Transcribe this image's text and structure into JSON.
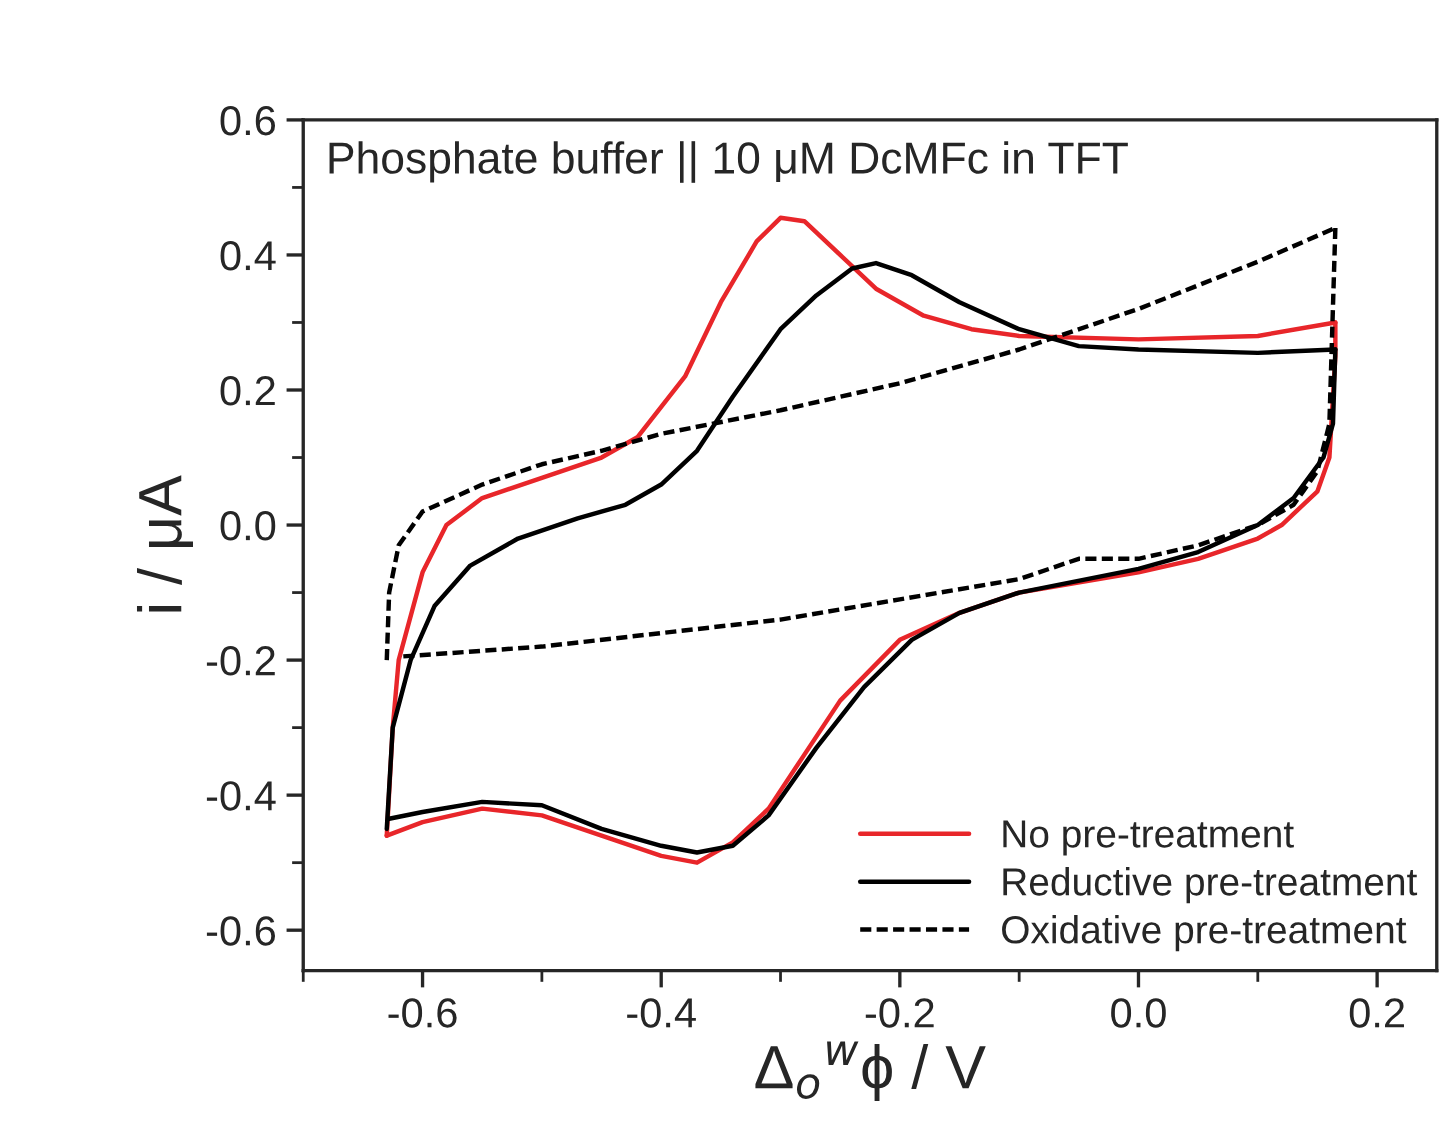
{
  "chart_data": {
    "type": "line",
    "title": "Phosphate buffer || 10 μM DcMFc in TFT",
    "xlabel": "Δ$_{o}$$^{w}$ϕ / V",
    "ylabel": "i / μA",
    "xlim": [
      -0.7,
      0.25
    ],
    "xticks": [
      -0.6,
      -0.4,
      -0.2,
      {
        "value": 0,
        "label": "0.0"
      },
      0.2
    ],
    "ylim": [
      -0.66,
      0.6
    ],
    "yticks": [
      -0.6,
      -0.4,
      -0.2,
      {
        "value": 0,
        "label": "0.0"
      },
      0.2,
      0.4,
      0.6
    ],
    "grid": false,
    "legend": "bottom right",
    "marker": "none",
    "series": [
      {
        "name": "No pre-treatment",
        "color": "#e8262a",
        "line_style": "solid",
        "x": [
          -0.63,
          -0.625,
          -0.62,
          -0.6,
          -0.58,
          -0.55,
          -0.5,
          -0.45,
          -0.42,
          -0.38,
          -0.35,
          -0.32,
          -0.3,
          -0.28,
          -0.25,
          -0.22,
          -0.18,
          -0.14,
          -0.1,
          0.0,
          0.1,
          0.165
        ],
        "values": [
          -0.46,
          -0.3,
          -0.2,
          -0.07,
          0.0,
          0.04,
          0.07,
          0.1,
          0.13,
          0.22,
          0.33,
          0.42,
          0.455,
          0.45,
          0.4,
          0.35,
          0.31,
          0.29,
          0.28,
          0.275,
          0.28,
          0.3
        ]
      },
      {
        "color": "#e8262a",
        "line_style": "solid",
        "x": [
          0.165,
          0.165,
          0.16,
          0.15,
          0.12,
          0.1,
          0.05,
          0.0,
          -0.1,
          -0.15,
          -0.2,
          -0.25,
          -0.28,
          -0.31,
          -0.34,
          -0.37,
          -0.4,
          -0.45,
          -0.5,
          -0.55,
          -0.6,
          -0.63
        ],
        "values": [
          0.3,
          0.25,
          0.1,
          0.05,
          0.0,
          -0.02,
          -0.05,
          -0.07,
          -0.1,
          -0.13,
          -0.17,
          -0.26,
          -0.34,
          -0.42,
          -0.47,
          -0.5,
          -0.49,
          -0.46,
          -0.43,
          -0.42,
          -0.44,
          -0.46
        ]
      },
      {
        "name": "Reductive pre-treatment",
        "color": "#000000",
        "line_style": "solid",
        "x": [
          -0.63,
          -0.625,
          -0.61,
          -0.59,
          -0.56,
          -0.52,
          -0.47,
          -0.43,
          -0.4,
          -0.37,
          -0.34,
          -0.3,
          -0.27,
          -0.24,
          -0.22,
          -0.19,
          -0.15,
          -0.1,
          -0.05,
          0.0,
          0.1,
          0.165
        ],
        "values": [
          -0.45,
          -0.3,
          -0.2,
          -0.12,
          -0.06,
          -0.02,
          0.01,
          0.03,
          0.06,
          0.11,
          0.19,
          0.29,
          0.34,
          0.38,
          0.388,
          0.37,
          0.33,
          0.29,
          0.265,
          0.26,
          0.255,
          0.26
        ]
      },
      {
        "color": "#000000",
        "line_style": "solid",
        "x": [
          0.165,
          0.163,
          0.155,
          0.13,
          0.1,
          0.05,
          0.0,
          -0.1,
          -0.15,
          -0.19,
          -0.23,
          -0.27,
          -0.31,
          -0.34,
          -0.37,
          -0.4,
          -0.45,
          -0.5,
          -0.55,
          -0.6,
          -0.628
        ],
        "values": [
          0.26,
          0.15,
          0.1,
          0.04,
          0.0,
          -0.04,
          -0.065,
          -0.1,
          -0.13,
          -0.17,
          -0.24,
          -0.33,
          -0.43,
          -0.475,
          -0.485,
          -0.475,
          -0.45,
          -0.415,
          -0.41,
          -0.425,
          -0.435
        ]
      },
      {
        "name": "Oxidative pre-treatment",
        "color": "#000000",
        "line_style": "dashed",
        "x": [
          -0.63,
          -0.628,
          -0.62,
          -0.6,
          -0.55,
          -0.5,
          -0.45,
          -0.4,
          -0.3,
          -0.2,
          -0.1,
          0.0,
          0.1,
          0.165
        ],
        "values": [
          -0.2,
          -0.1,
          -0.03,
          0.02,
          0.06,
          0.09,
          0.11,
          0.135,
          0.17,
          0.21,
          0.26,
          0.32,
          0.39,
          0.44
        ]
      },
      {
        "color": "#000000",
        "line_style": "dashed",
        "x": [
          0.165,
          0.16,
          0.15,
          0.13,
          0.1,
          0.05,
          0.0,
          -0.05,
          -0.1,
          -0.2,
          -0.3,
          -0.4,
          -0.5,
          -0.62
        ],
        "values": [
          0.44,
          0.15,
          0.08,
          0.03,
          0.0,
          -0.03,
          -0.05,
          -0.05,
          -0.08,
          -0.11,
          -0.14,
          -0.16,
          -0.18,
          -0.195
        ]
      }
    ]
  }
}
